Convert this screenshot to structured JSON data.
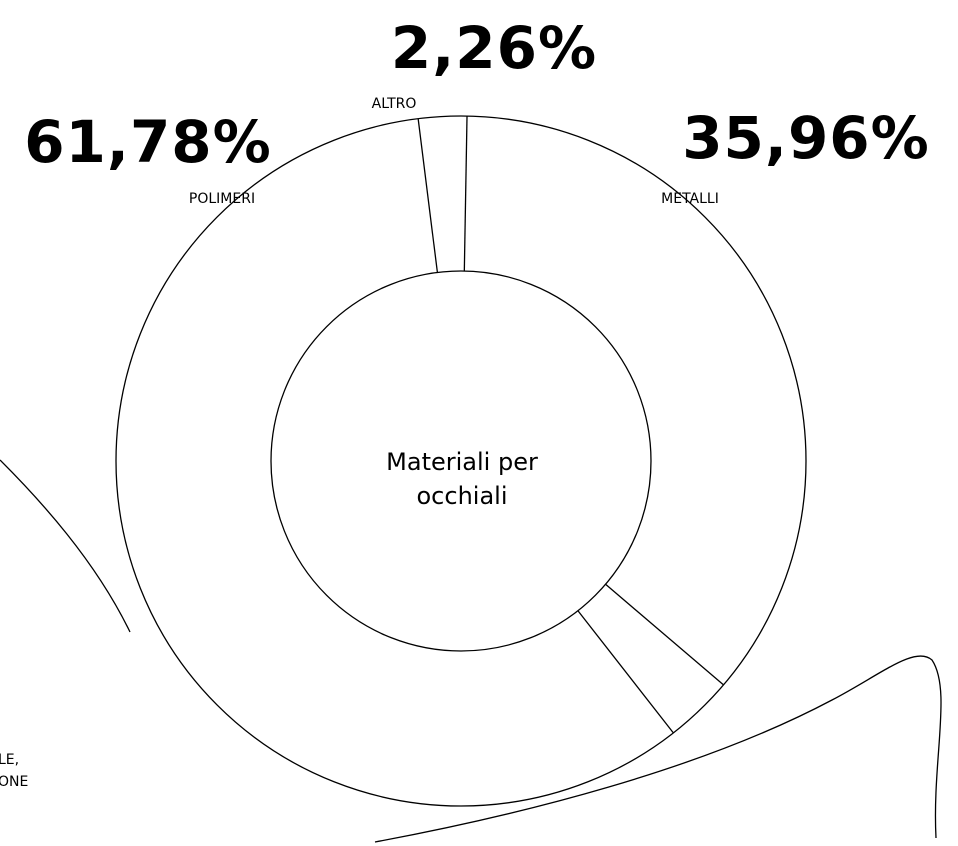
{
  "chart_data": {
    "type": "pie",
    "variant": "donut",
    "title": "Materiali per occhiali",
    "slices": [
      {
        "label": "METALLI",
        "value": 35.96,
        "value_text": "35,96%"
      },
      {
        "label": "POLIMERI",
        "value": 61.78,
        "value_text": "61,78%"
      },
      {
        "label": "ALTRO",
        "value": 2.26,
        "value_text": "2,26%"
      }
    ],
    "sub_slices": [
      {
        "parent": "POLIMERI",
        "value": 3.21
      }
    ],
    "legend": "none",
    "grid": false
  },
  "center": {
    "line1": "Materiali per",
    "line2": "occhiali"
  },
  "cropped_label": {
    "line1": "LE,",
    "line2": "ONE"
  }
}
